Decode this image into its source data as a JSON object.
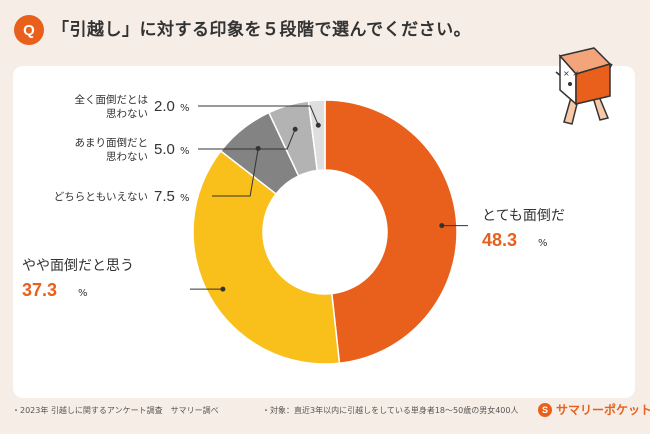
{
  "header": {
    "badge": "Q",
    "title": "「引越し」に対する印象を５段階で選んでください。"
  },
  "chart_data": {
    "type": "pie",
    "variant": "donut",
    "unit": "%",
    "slices": [
      {
        "label": "とても面倒だ",
        "value": 48.3,
        "value_text": "48.3",
        "color": "#e8601c",
        "emphasis": true
      },
      {
        "label": "やや面倒だと思う",
        "value": 37.3,
        "value_text": "37.3",
        "color": "#f9bf1b",
        "emphasis": true
      },
      {
        "label": "どちらともいえない",
        "value": 7.5,
        "value_text": "7.5",
        "color": "#838383",
        "emphasis": false
      },
      {
        "label": "あまり面倒だと\n思わない",
        "value": 5.0,
        "value_text": "5.0",
        "color": "#b3b3b3",
        "emphasis": false
      },
      {
        "label": "全く面倒だとは\n思わない",
        "value": 2.0,
        "value_text": "2.0",
        "color": "#dedede",
        "emphasis": false
      }
    ]
  },
  "footer": {
    "source": "・2023年 引越しに関するアンケート調査　サマリー調べ",
    "target": "・対象：直近3年以内に引越しをしている単身者18〜50歳の男女400人",
    "brand_mark": "S",
    "brand_name": "サマリーポケット"
  },
  "mascot": {
    "icon": "moving-box-character-icon"
  }
}
